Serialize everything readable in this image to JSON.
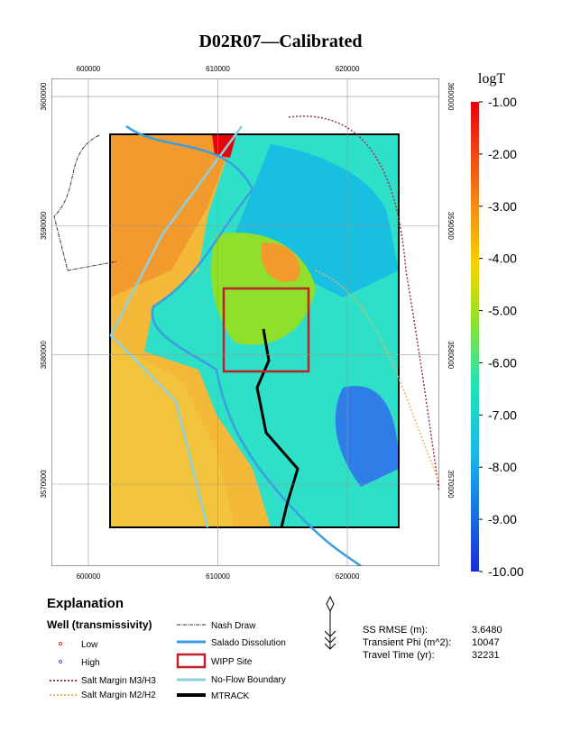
{
  "title": "D02R07—Calibrated",
  "map": {
    "xlim": [
      597150,
      627100
    ],
    "ylim": [
      3563650,
      3601400
    ],
    "xticks": [
      600000,
      610000,
      620000
    ],
    "yticks": [
      3570000,
      3580000,
      3590000,
      3600000
    ]
  },
  "colorbar": {
    "label": "logT",
    "clim": [
      -10,
      -1
    ],
    "ticks": [
      {
        "value": -1,
        "label": "-1.00"
      },
      {
        "value": -2,
        "label": "-2.00"
      },
      {
        "value": -3,
        "label": "-3.00"
      },
      {
        "value": -4,
        "label": "-4.00"
      },
      {
        "value": -5,
        "label": "-5.00"
      },
      {
        "value": -6,
        "label": "-6.00"
      },
      {
        "value": -7,
        "label": "-7.00"
      },
      {
        "value": -8,
        "label": "-8.00"
      },
      {
        "value": -9,
        "label": "-9.00"
      },
      {
        "value": -10,
        "label": "-10.00"
      }
    ]
  },
  "legend": {
    "heading": "Explanation",
    "well_heading": "Well (transmissivity)",
    "items": [
      "Low",
      "High",
      "Salt Margin M3/H3",
      "Salt Margin M2/H2",
      "Nash Draw",
      "Salado Dissolution",
      "WIPP Site",
      "No-Flow Boundary",
      "MTRACK"
    ]
  },
  "stats": [
    [
      "SS RMSE (m):",
      "3.6480"
    ],
    [
      "Transient Phi (m^2):",
      "10047"
    ],
    [
      "Travel Time (yr):",
      "32231"
    ]
  ]
}
